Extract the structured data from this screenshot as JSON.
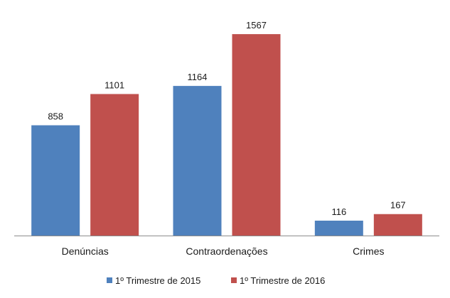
{
  "chart_data": {
    "type": "bar",
    "categories": [
      "Denúncias",
      "Contraordenações",
      "Crimes"
    ],
    "series": [
      {
        "name": "1º Trimestre de 2015",
        "color": "#4f81bd",
        "values": [
          858,
          1164,
          116
        ]
      },
      {
        "name": "1º Trimestre de 2016",
        "color": "#c0504d",
        "values": [
          1101,
          1567,
          167
        ]
      }
    ],
    "title": "",
    "xlabel": "",
    "ylabel": "",
    "ylim": [
      0,
      1700
    ],
    "grid": false,
    "legend": "bottom",
    "data_labels": true
  }
}
